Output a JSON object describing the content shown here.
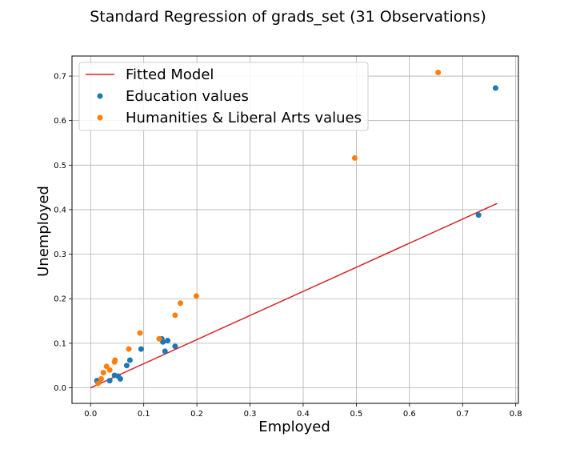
{
  "chart_data": {
    "type": "scatter",
    "title": "Standard Regression of grads_set (31 Observations)",
    "xlabel": "Employed",
    "ylabel": "Unemployed",
    "xlim": [
      -0.035,
      0.805
    ],
    "ylim": [
      -0.035,
      0.745
    ],
    "xticks": [
      0.0,
      0.1,
      0.2,
      0.3,
      0.4,
      0.5,
      0.6,
      0.7,
      0.8
    ],
    "xtick_labels": [
      "0.0",
      "0.1",
      "0.2",
      "0.3",
      "0.4",
      "0.5",
      "0.6",
      "0.7",
      "0.8"
    ],
    "yticks": [
      0.0,
      0.1,
      0.2,
      0.3,
      0.4,
      0.5,
      0.6,
      0.7
    ],
    "ytick_labels": [
      "0.0",
      "0.1",
      "0.2",
      "0.3",
      "0.4",
      "0.5",
      "0.6",
      "0.7"
    ],
    "grid": true,
    "legend_position": "top-left",
    "fit_line": {
      "name": "Fitted Model",
      "color": "#d62728",
      "points": [
        [
          0.0,
          0.0
        ],
        [
          0.765,
          0.414
        ]
      ]
    },
    "series": [
      {
        "name": "Education values",
        "color": "#1f77b4",
        "points": [
          [
            0.012,
            0.016
          ],
          [
            0.015,
            0.012
          ],
          [
            0.036,
            0.016
          ],
          [
            0.045,
            0.028
          ],
          [
            0.052,
            0.026
          ],
          [
            0.056,
            0.02
          ],
          [
            0.068,
            0.05
          ],
          [
            0.074,
            0.062
          ],
          [
            0.095,
            0.087
          ],
          [
            0.134,
            0.11
          ],
          [
            0.136,
            0.103
          ],
          [
            0.14,
            0.082
          ],
          [
            0.145,
            0.106
          ],
          [
            0.159,
            0.093
          ],
          [
            0.73,
            0.388
          ],
          [
            0.762,
            0.673
          ]
        ]
      },
      {
        "name": "Humanities & Liberal Arts values",
        "color": "#ff7f0e",
        "points": [
          [
            0.014,
            0.01
          ],
          [
            0.02,
            0.02
          ],
          [
            0.024,
            0.034
          ],
          [
            0.03,
            0.048
          ],
          [
            0.036,
            0.04
          ],
          [
            0.045,
            0.058
          ],
          [
            0.046,
            0.062
          ],
          [
            0.072,
            0.087
          ],
          [
            0.093,
            0.123
          ],
          [
            0.129,
            0.11
          ],
          [
            0.159,
            0.163
          ],
          [
            0.169,
            0.19
          ],
          [
            0.199,
            0.206
          ],
          [
            0.497,
            0.516
          ],
          [
            0.654,
            0.708
          ]
        ]
      }
    ]
  }
}
